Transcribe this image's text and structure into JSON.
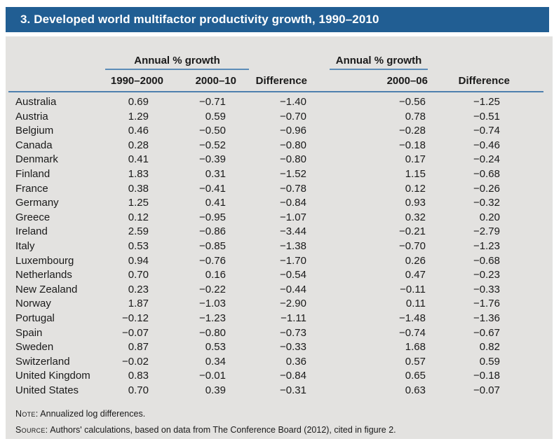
{
  "title": "3. Developed world multifactor productivity growth, 1990–2010",
  "table": {
    "group_headers": {
      "left": "Annual % growth",
      "right": "Annual % growth"
    },
    "columns": {
      "country": "",
      "c1": "1990–2000",
      "c2": "2000–10",
      "c3": "Difference",
      "c4": "2000–06",
      "c5": "Difference"
    },
    "rows": [
      {
        "country": "Australia",
        "values": [
          "0.69",
          "−0.71",
          "−1.40",
          "−0.56",
          "−1.25"
        ]
      },
      {
        "country": "Austria",
        "values": [
          "1.29",
          "0.59",
          "−0.70",
          "0.78",
          "−0.51"
        ]
      },
      {
        "country": "Belgium",
        "values": [
          "0.46",
          "−0.50",
          "−0.96",
          "−0.28",
          "−0.74"
        ]
      },
      {
        "country": "Canada",
        "values": [
          "0.28",
          "−0.52",
          "−0.80",
          "−0.18",
          "−0.46"
        ]
      },
      {
        "country": "Denmark",
        "values": [
          "0.41",
          "−0.39",
          "−0.80",
          "0.17",
          "−0.24"
        ]
      },
      {
        "country": "Finland",
        "values": [
          "1.83",
          "0.31",
          "−1.52",
          "1.15",
          "−0.68"
        ]
      },
      {
        "country": "France",
        "values": [
          "0.38",
          "−0.41",
          "−0.78",
          "0.12",
          "−0.26"
        ]
      },
      {
        "country": "Germany",
        "values": [
          "1.25",
          "0.41",
          "−0.84",
          "0.93",
          "−0.32"
        ]
      },
      {
        "country": "Greece",
        "values": [
          "0.12",
          "−0.95",
          "−1.07",
          "0.32",
          "0.20"
        ]
      },
      {
        "country": "Ireland",
        "values": [
          "2.59",
          "−0.86",
          "−3.44",
          "−0.21",
          "−2.79"
        ]
      },
      {
        "country": "Italy",
        "values": [
          "0.53",
          "−0.85",
          "−1.38",
          "−0.70",
          "−1.23"
        ]
      },
      {
        "country": "Luxembourg",
        "values": [
          "0.94",
          "−0.76",
          "−1.70",
          "0.26",
          "−0.68"
        ]
      },
      {
        "country": "Netherlands",
        "values": [
          "0.70",
          "0.16",
          "−0.54",
          "0.47",
          "−0.23"
        ]
      },
      {
        "country": "New Zealand",
        "values": [
          "0.23",
          "−0.22",
          "−0.44",
          "−0.11",
          "−0.33"
        ]
      },
      {
        "country": "Norway",
        "values": [
          "1.87",
          "−1.03",
          "−2.90",
          "0.11",
          "−1.76"
        ]
      },
      {
        "country": "Portugal",
        "values": [
          "−0.12",
          "−1.23",
          "−1.11",
          "−1.48",
          "−1.36"
        ]
      },
      {
        "country": "Spain",
        "values": [
          "−0.07",
          "−0.80",
          "−0.73",
          "−0.74",
          "−0.67"
        ]
      },
      {
        "country": "Sweden",
        "values": [
          "0.87",
          "0.53",
          "−0.33",
          "1.68",
          "0.82"
        ]
      },
      {
        "country": "Switzerland",
        "values": [
          "−0.02",
          "0.34",
          "0.36",
          "0.57",
          "0.59"
        ]
      },
      {
        "country": "United Kingdom",
        "values": [
          "0.83",
          "−0.01",
          "−0.84",
          "0.65",
          "−0.18"
        ]
      },
      {
        "country": "United States",
        "values": [
          "0.70",
          "0.39",
          "−0.31",
          "0.63",
          "−0.07"
        ]
      }
    ]
  },
  "footer": {
    "note_label": "Note:",
    "note_text": " Annualized log differences.",
    "source_label": "Source:",
    "source_text": " Authors' calculations, based on data from The Conference Board (2012), cited in figure 2."
  },
  "colors": {
    "banner_blue": "#215E93",
    "rule_blue": "#4E80AE",
    "underline_blue": "#5C8CB8",
    "body_gray": "#E3E2E0",
    "text": "#1a1a1a",
    "title_text": "#ffffff"
  }
}
